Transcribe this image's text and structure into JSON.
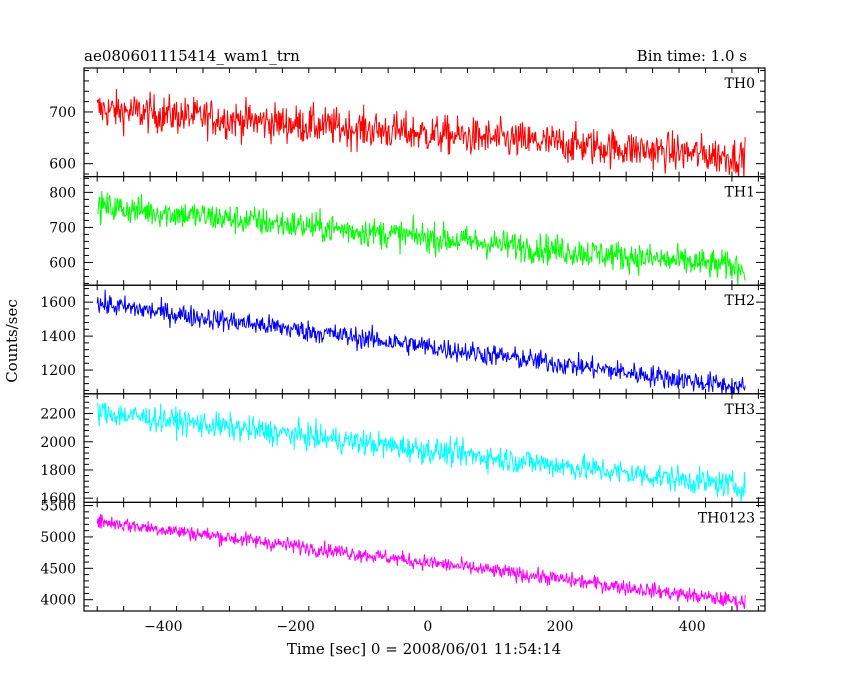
{
  "header": {
    "title": "ae080601115414_wam1_trn",
    "bin_time": "Bin time: 1.0 s"
  },
  "chart_data": {
    "type": "line",
    "xlabel": "Time [sec] 0 = 2008/06/01 11:54:14",
    "ylabel": "Counts/sec",
    "xlim": [
      -520,
      510
    ],
    "x_ticks": [
      -400,
      -200,
      0,
      200,
      400
    ],
    "x_range": [
      -500,
      480
    ],
    "bin_seconds": 1.0,
    "panels": [
      {
        "name": "TH0",
        "color": "#ff0000",
        "ylim": [
          575,
          785
        ],
        "y_ticks": [
          600,
          700
        ],
        "start": 705,
        "end": 612,
        "noise": 26
      },
      {
        "name": "TH1",
        "color": "#00ff00",
        "ylim": [
          535,
          845
        ],
        "y_ticks": [
          600,
          700,
          800
        ],
        "start": 760,
        "end": 585,
        "noise": 30
      },
      {
        "name": "TH2",
        "color": "#0000ff",
        "ylim": [
          1060,
          1700
        ],
        "y_ticks": [
          1200,
          1400,
          1600
        ],
        "start": 1590,
        "end": 1095,
        "noise": 45
      },
      {
        "name": "TH3",
        "color": "#00ffff",
        "ylim": [
          1570,
          2340
        ],
        "y_ticks": [
          1600,
          1800,
          2000,
          2200
        ],
        "start": 2210,
        "end": 1680,
        "noise": 65
      },
      {
        "name": "TH0123",
        "color": "#ff00ff",
        "ylim": [
          3820,
          5550
        ],
        "y_ticks": [
          4000,
          4500,
          5000,
          5500
        ],
        "start": 5250,
        "end": 3960,
        "noise": 85
      }
    ]
  }
}
